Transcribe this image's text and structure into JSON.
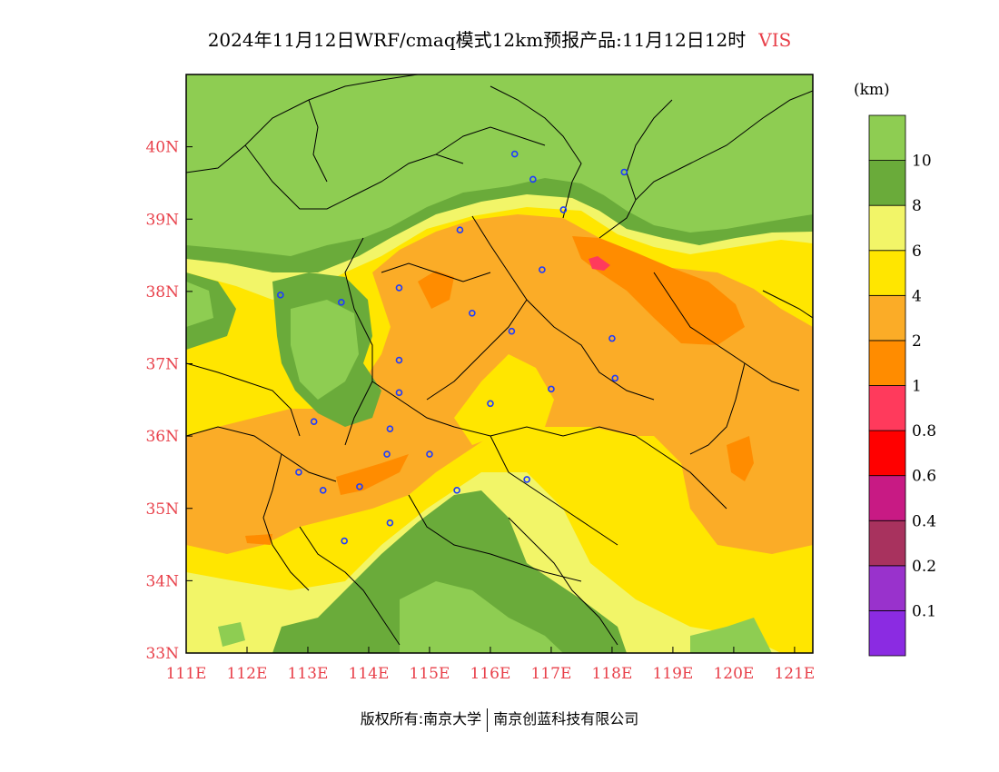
{
  "title": {
    "main": "2024年11月12日WRF/cmaq模式12km预报产品:11月12日12时",
    "variable": "VIS"
  },
  "colorbar": {
    "units": "(km)",
    "bins": [
      {
        "color": "#8b2be2",
        "label": "0.1"
      },
      {
        "color": "#9932cc",
        "label": "0.2"
      },
      {
        "color": "#a8325e",
        "label": "0.4"
      },
      {
        "color": "#c81a84",
        "label": "0.6"
      },
      {
        "color": "#ff0000",
        "label": "0.8"
      },
      {
        "color": "#ff3a5c",
        "label": "1"
      },
      {
        "color": "#ff8c00",
        "label": "2"
      },
      {
        "color": "#fbac27",
        "label": "4"
      },
      {
        "color": "#ffe600",
        "label": "6"
      },
      {
        "color": "#f2f568",
        "label": "8"
      },
      {
        "color": "#6aab3a",
        "label": "10"
      },
      {
        "color": "#8ecd52",
        "label": ""
      }
    ]
  },
  "axes": {
    "x_ticks": [
      "111E",
      "112E",
      "113E",
      "114E",
      "115E",
      "116E",
      "117E",
      "118E",
      "119E",
      "120E",
      "121E"
    ],
    "y_ticks": [
      "33N",
      "34N",
      "35N",
      "36N",
      "37N",
      "38N",
      "39N",
      "40N"
    ],
    "lon_range": [
      111,
      121.3
    ],
    "lat_range": [
      33,
      41
    ]
  },
  "footer": {
    "left": "版权所有:南京大学",
    "right": "南京创蓝科技有限公司"
  },
  "colors": {
    "axis_label": "#e8404a",
    "station_marker": "#1e3cff"
  },
  "stations": [
    {
      "lon": 116.4,
      "lat": 39.9
    },
    {
      "lon": 118.2,
      "lat": 39.65
    },
    {
      "lon": 116.7,
      "lat": 39.55
    },
    {
      "lon": 117.2,
      "lat": 39.13
    },
    {
      "lon": 115.5,
      "lat": 38.85
    },
    {
      "lon": 116.85,
      "lat": 38.3
    },
    {
      "lon": 112.55,
      "lat": 37.95
    },
    {
      "lon": 113.55,
      "lat": 37.85
    },
    {
      "lon": 114.5,
      "lat": 38.05
    },
    {
      "lon": 115.7,
      "lat": 37.7
    },
    {
      "lon": 116.35,
      "lat": 37.45
    },
    {
      "lon": 118.0,
      "lat": 37.35
    },
    {
      "lon": 114.5,
      "lat": 37.05
    },
    {
      "lon": 114.5,
      "lat": 36.6
    },
    {
      "lon": 117.0,
      "lat": 36.65
    },
    {
      "lon": 118.05,
      "lat": 36.8
    },
    {
      "lon": 116.0,
      "lat": 36.45
    },
    {
      "lon": 113.1,
      "lat": 36.2
    },
    {
      "lon": 114.35,
      "lat": 36.1
    },
    {
      "lon": 114.3,
      "lat": 35.75
    },
    {
      "lon": 115.0,
      "lat": 35.75
    },
    {
      "lon": 112.85,
      "lat": 35.5
    },
    {
      "lon": 116.6,
      "lat": 35.4
    },
    {
      "lon": 113.25,
      "lat": 35.25
    },
    {
      "lon": 113.85,
      "lat": 35.3
    },
    {
      "lon": 115.45,
      "lat": 35.25
    },
    {
      "lon": 114.35,
      "lat": 34.8
    },
    {
      "lon": 113.6,
      "lat": 34.55
    }
  ]
}
